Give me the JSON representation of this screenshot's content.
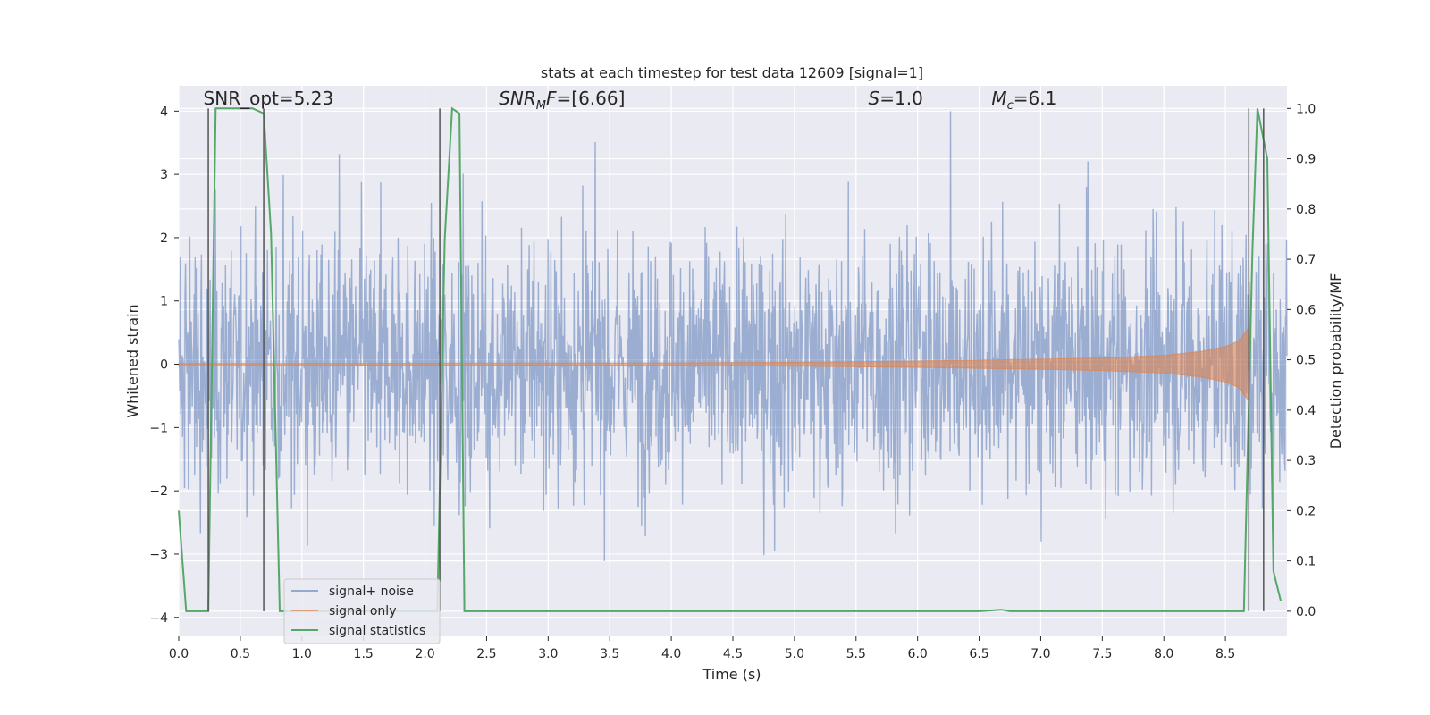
{
  "chart_data": {
    "type": "line",
    "title": "stats at each timestep for test data 12609 [signal=1]",
    "xlabel": "Time (s)",
    "ylabel": "Whitened strain",
    "y2label": "Detection probability/MF",
    "xlim": [
      0,
      9.0
    ],
    "ylim": [
      -4.3,
      4.4
    ],
    "y2lim": [
      -0.05,
      1.045
    ],
    "xticks": [
      0.0,
      0.5,
      1.0,
      1.5,
      2.0,
      2.5,
      3.0,
      3.5,
      4.0,
      4.5,
      5.0,
      5.5,
      6.0,
      6.5,
      7.0,
      7.5,
      8.0,
      8.5
    ],
    "yticks": [
      -4,
      -3,
      -2,
      -1,
      0,
      1,
      2,
      3,
      4
    ],
    "y2ticks": [
      0.0,
      0.1,
      0.2,
      0.3,
      0.4,
      0.5,
      0.6,
      0.7,
      0.8,
      0.9,
      1.0
    ],
    "grid": true,
    "legend_position": "lower-left",
    "annotations": [
      {
        "text": "SNR_opt=5.23",
        "x": 0.2,
        "y": 4.1,
        "style": "normal"
      },
      {
        "text": "SNR_MF=[6.66]",
        "x": 2.6,
        "y": 4.1,
        "style": "italic-sub",
        "main": "SNR",
        "sub": "M",
        "rest": "F=[6.66]"
      },
      {
        "text": "S=1.0",
        "x": 5.6,
        "y": 4.1,
        "style": "italic-var",
        "main": "S",
        "rest": "=1.0"
      },
      {
        "text": "M_c=6.1",
        "x": 6.6,
        "y": 4.1,
        "style": "italic-sub",
        "main": "M",
        "sub": "c",
        "rest": "=6.1"
      }
    ],
    "vlines": [
      0.24,
      0.69,
      2.12,
      8.69,
      8.81
    ],
    "series": [
      {
        "name": "signal+ noise",
        "color": "#4c72b0",
        "opacity": 0.5,
        "kind": "noise",
        "description_values": {
          "typical_sigma": 1.0,
          "max": 4.0,
          "min": -3.8
        }
      },
      {
        "name": "signal only",
        "color": "#dd8452",
        "opacity": 0.6,
        "kind": "chirp",
        "envelope": {
          "x": [
            0.0,
            4.0,
            5.0,
            6.0,
            7.0,
            7.5,
            8.0,
            8.3,
            8.5,
            8.6,
            8.66,
            8.69
          ],
          "amp": [
            0.01,
            0.02,
            0.03,
            0.05,
            0.08,
            0.1,
            0.14,
            0.2,
            0.28,
            0.36,
            0.5,
            0.58
          ]
        }
      },
      {
        "name": "signal statistics",
        "color": "#55a868",
        "axis": "right",
        "x": [
          0.0,
          0.06,
          0.15,
          0.24,
          0.3,
          0.6,
          0.69,
          0.75,
          0.82,
          0.9,
          2.1,
          2.16,
          2.22,
          2.28,
          2.32,
          2.4,
          2.6,
          4.0,
          6.5,
          6.68,
          6.75,
          8.5,
          8.65,
          8.72,
          8.76,
          8.84,
          8.89,
          8.95
        ],
        "values": [
          0.2,
          0.0,
          0.0,
          0.0,
          1.0,
          1.0,
          0.99,
          0.75,
          0.0,
          0.0,
          0.0,
          0.74,
          1.0,
          0.99,
          0.0,
          0.0,
          0.0,
          0.0,
          0.0,
          0.003,
          0.0,
          0.0,
          0.0,
          0.72,
          1.0,
          0.9,
          0.08,
          0.02
        ]
      }
    ]
  }
}
